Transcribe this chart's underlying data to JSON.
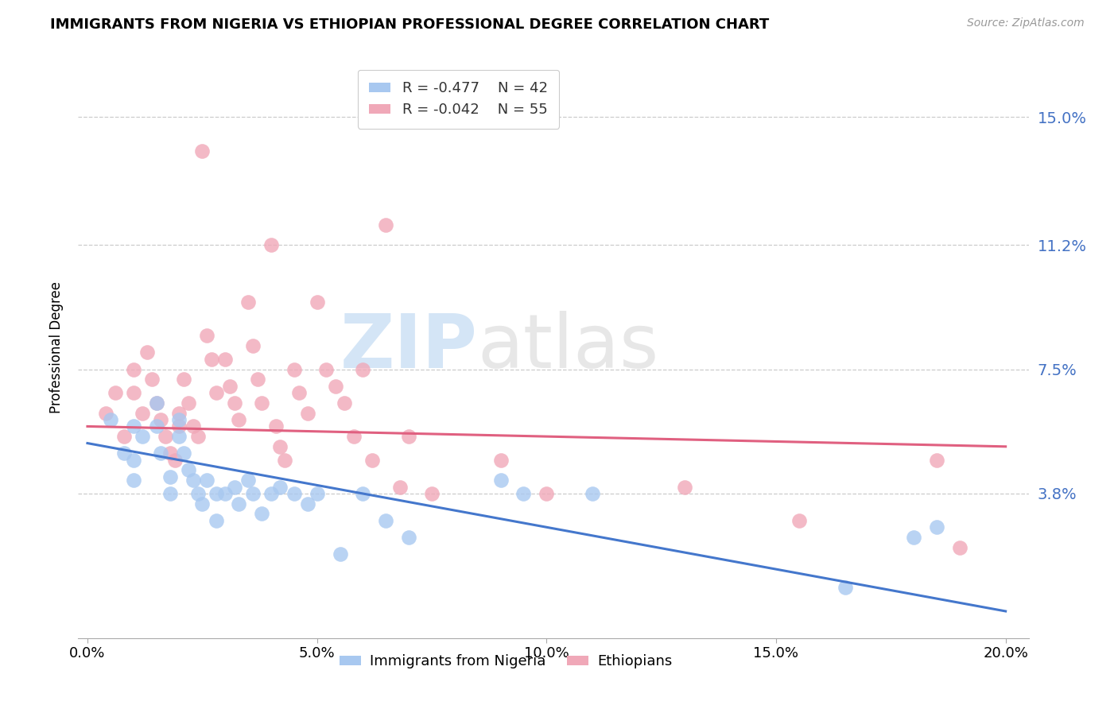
{
  "title": "IMMIGRANTS FROM NIGERIA VS ETHIOPIAN PROFESSIONAL DEGREE CORRELATION CHART",
  "source": "Source: ZipAtlas.com",
  "ylabel": "Professional Degree",
  "xlabel_ticks": [
    "0.0%",
    "5.0%",
    "10.0%",
    "15.0%",
    "20.0%"
  ],
  "xlabel_vals": [
    0.0,
    0.05,
    0.1,
    0.15,
    0.2
  ],
  "ytick_labels": [
    "3.8%",
    "7.5%",
    "11.2%",
    "15.0%"
  ],
  "ytick_vals": [
    0.038,
    0.075,
    0.112,
    0.15
  ],
  "xlim": [
    -0.002,
    0.205
  ],
  "ylim": [
    -0.005,
    0.168
  ],
  "nigeria_color": "#a8c8f0",
  "ethiopia_color": "#f0a8b8",
  "nigeria_label": "Immigrants from Nigeria",
  "ethiopia_label": "Ethiopians",
  "nigeria_R": "-0.477",
  "nigeria_N": "42",
  "ethiopia_R": "-0.042",
  "ethiopia_N": "55",
  "trend_nigeria_color": "#4477cc",
  "trend_ethiopia_color": "#e06080",
  "watermark_zip": "ZIP",
  "watermark_atlas": "atlas",
  "nigeria_scatter_x": [
    0.005,
    0.008,
    0.01,
    0.01,
    0.01,
    0.012,
    0.015,
    0.015,
    0.016,
    0.018,
    0.018,
    0.02,
    0.02,
    0.021,
    0.022,
    0.023,
    0.024,
    0.025,
    0.026,
    0.028,
    0.028,
    0.03,
    0.032,
    0.033,
    0.035,
    0.036,
    0.038,
    0.04,
    0.042,
    0.045,
    0.048,
    0.05,
    0.055,
    0.06,
    0.065,
    0.07,
    0.09,
    0.095,
    0.11,
    0.165,
    0.18,
    0.185
  ],
  "nigeria_scatter_y": [
    0.06,
    0.05,
    0.058,
    0.048,
    0.042,
    0.055,
    0.065,
    0.058,
    0.05,
    0.043,
    0.038,
    0.06,
    0.055,
    0.05,
    0.045,
    0.042,
    0.038,
    0.035,
    0.042,
    0.038,
    0.03,
    0.038,
    0.04,
    0.035,
    0.042,
    0.038,
    0.032,
    0.038,
    0.04,
    0.038,
    0.035,
    0.038,
    0.02,
    0.038,
    0.03,
    0.025,
    0.042,
    0.038,
    0.038,
    0.01,
    0.025,
    0.028
  ],
  "ethiopia_scatter_x": [
    0.004,
    0.006,
    0.008,
    0.01,
    0.01,
    0.012,
    0.013,
    0.014,
    0.015,
    0.016,
    0.017,
    0.018,
    0.019,
    0.02,
    0.02,
    0.021,
    0.022,
    0.023,
    0.024,
    0.025,
    0.026,
    0.027,
    0.028,
    0.03,
    0.031,
    0.032,
    0.033,
    0.035,
    0.036,
    0.037,
    0.038,
    0.04,
    0.041,
    0.042,
    0.043,
    0.045,
    0.046,
    0.048,
    0.05,
    0.052,
    0.054,
    0.056,
    0.058,
    0.06,
    0.062,
    0.065,
    0.068,
    0.07,
    0.075,
    0.09,
    0.1,
    0.13,
    0.155,
    0.185,
    0.19
  ],
  "ethiopia_scatter_y": [
    0.062,
    0.068,
    0.055,
    0.075,
    0.068,
    0.062,
    0.08,
    0.072,
    0.065,
    0.06,
    0.055,
    0.05,
    0.048,
    0.062,
    0.058,
    0.072,
    0.065,
    0.058,
    0.055,
    0.14,
    0.085,
    0.078,
    0.068,
    0.078,
    0.07,
    0.065,
    0.06,
    0.095,
    0.082,
    0.072,
    0.065,
    0.112,
    0.058,
    0.052,
    0.048,
    0.075,
    0.068,
    0.062,
    0.095,
    0.075,
    0.07,
    0.065,
    0.055,
    0.075,
    0.048,
    0.118,
    0.04,
    0.055,
    0.038,
    0.048,
    0.038,
    0.04,
    0.03,
    0.048,
    0.022
  ]
}
